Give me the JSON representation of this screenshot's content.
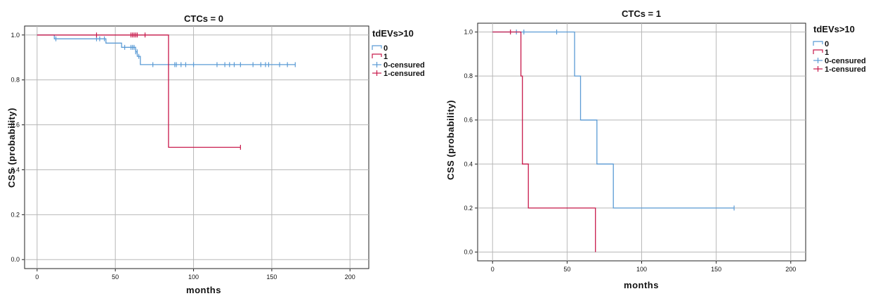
{
  "chart_data": [
    {
      "type": "line",
      "subtype": "kaplan-meier",
      "title": "CTCs = 0",
      "xlabel": "months",
      "ylabel": "CSS (probability)",
      "xlim": [
        -8,
        212
      ],
      "ylim": [
        -0.04,
        1.04
      ],
      "xticks": [
        "0",
        "50",
        "100",
        "150",
        "200"
      ],
      "xtick_values": [
        0,
        50,
        100,
        150,
        200
      ],
      "yticks": [
        "0.0",
        "0.2",
        "0.4",
        "0.6",
        "0.8",
        "1.0"
      ],
      "ytick_values": [
        0.0,
        0.2,
        0.4,
        0.6,
        0.8,
        1.0
      ],
      "grid": true,
      "legend": {
        "title": "tdEVs>10",
        "placement": "right",
        "entries": [
          {
            "label": "0",
            "kind": "step",
            "color": "#5b9bd5"
          },
          {
            "label": "1",
            "kind": "step",
            "color": "#c8194b"
          },
          {
            "label": "0-censured",
            "kind": "censor",
            "color": "#5b9bd5"
          },
          {
            "label": "1-censured",
            "kind": "censor",
            "color": "#c8194b"
          }
        ]
      },
      "series": [
        {
          "name": "0",
          "color": "#5b9bd5",
          "steps": [
            [
              0,
              1.0
            ],
            [
              11,
              0.983
            ],
            [
              44,
              0.964
            ],
            [
              54,
              0.945
            ],
            [
              63,
              0.925
            ],
            [
              64,
              0.905
            ],
            [
              66,
              0.868
            ],
            [
              165,
              0.868
            ]
          ],
          "censored": [
            [
              12,
              0.983
            ],
            [
              38,
              0.983
            ],
            [
              40,
              0.983
            ],
            [
              43,
              0.983
            ],
            [
              56,
              0.945
            ],
            [
              60,
              0.945
            ],
            [
              61,
              0.945
            ],
            [
              62,
              0.945
            ],
            [
              63,
              0.925
            ],
            [
              64,
              0.925
            ],
            [
              65,
              0.905
            ],
            [
              74,
              0.868
            ],
            [
              88,
              0.868
            ],
            [
              89,
              0.868
            ],
            [
              92,
              0.868
            ],
            [
              95,
              0.868
            ],
            [
              100,
              0.868
            ],
            [
              115,
              0.868
            ],
            [
              120,
              0.868
            ],
            [
              123,
              0.868
            ],
            [
              126,
              0.868
            ],
            [
              130,
              0.868
            ],
            [
              138,
              0.868
            ],
            [
              143,
              0.868
            ],
            [
              146,
              0.868
            ],
            [
              148,
              0.868
            ],
            [
              155,
              0.868
            ],
            [
              160,
              0.868
            ],
            [
              165,
              0.868
            ]
          ]
        },
        {
          "name": "1",
          "color": "#c8194b",
          "steps": [
            [
              0,
              1.0
            ],
            [
              84,
              0.5
            ],
            [
              130,
              0.5
            ]
          ],
          "censored": [
            [
              38,
              1.0
            ],
            [
              60,
              1.0
            ],
            [
              61,
              1.0
            ],
            [
              62,
              1.0
            ],
            [
              63,
              1.0
            ],
            [
              64,
              1.0
            ],
            [
              69,
              1.0
            ],
            [
              130,
              0.5
            ]
          ]
        }
      ]
    },
    {
      "type": "line",
      "subtype": "kaplan-meier",
      "title": "CTCs = 1",
      "xlabel": "months",
      "ylabel": "CSS (probability)",
      "xlim": [
        -10,
        210
      ],
      "ylim": [
        -0.04,
        1.04
      ],
      "xticks": [
        "0",
        "50",
        "100",
        "150",
        "200"
      ],
      "xtick_values": [
        0,
        50,
        100,
        150,
        200
      ],
      "yticks": [
        "0.0",
        "0.2",
        "0.4",
        "0.6",
        "0.8",
        "1.0"
      ],
      "ytick_values": [
        0.0,
        0.2,
        0.4,
        0.6,
        0.8,
        1.0
      ],
      "grid": true,
      "legend": {
        "title": "tdEVs>10",
        "placement": "right",
        "entries": [
          {
            "label": "0",
            "kind": "step",
            "color": "#5b9bd5"
          },
          {
            "label": "1",
            "kind": "step",
            "color": "#c8194b"
          },
          {
            "label": "0-censured",
            "kind": "censor",
            "color": "#5b9bd5"
          },
          {
            "label": "1-censured",
            "kind": "censor",
            "color": "#c8194b"
          }
        ]
      },
      "series": [
        {
          "name": "0",
          "color": "#5b9bd5",
          "steps": [
            [
              0,
              1.0
            ],
            [
              55,
              0.8
            ],
            [
              59,
              0.6
            ],
            [
              70,
              0.4
            ],
            [
              81,
              0.2
            ],
            [
              162,
              0.2
            ]
          ],
          "censored": [
            [
              16,
              1.0
            ],
            [
              21,
              1.0
            ],
            [
              43,
              1.0
            ],
            [
              162,
              0.2
            ]
          ]
        },
        {
          "name": "1",
          "color": "#c8194b",
          "steps": [
            [
              0,
              1.0
            ],
            [
              19,
              0.8
            ],
            [
              20,
              0.4
            ],
            [
              24,
              0.2
            ],
            [
              69,
              0.0
            ]
          ],
          "censored": [
            [
              12,
              1.0
            ]
          ]
        }
      ]
    }
  ]
}
